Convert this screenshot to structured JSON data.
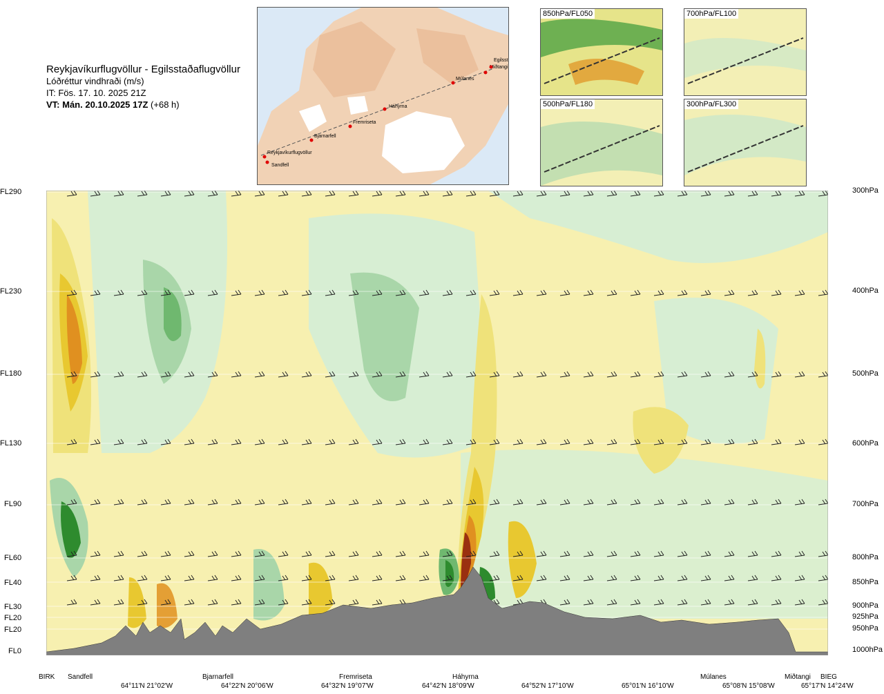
{
  "header": {
    "title": "Reykjavíkurflugvöllur - Egilsstaðaflugvöllur",
    "subtitle": "Lóðréttur vindhraði (m/s)",
    "issue_time": "IT: Fös. 17. 10. 2025 21Z",
    "valid_time_bold": "VT: Mán. 20.10.2025 17Z",
    "valid_time_offset": "(+68 h)"
  },
  "route_map": {
    "points": [
      "Reykjavíkurflugvöllur",
      "Sandfell",
      "Bjarnarfell",
      "Fremriseta",
      "Háhyrna",
      "Múlanes",
      "Miðtangi",
      "Egilsst"
    ]
  },
  "level_panels": [
    {
      "label": "850hPa/FL050"
    },
    {
      "label": "700hPa/FL100"
    },
    {
      "label": "500hPa/FL180"
    },
    {
      "label": "300hPa/FL300"
    }
  ],
  "chart_data": {
    "type": "heatmap",
    "title": "Lóðréttur vindhraði (m/s)",
    "y_left_labels": [
      "FL290",
      "FL230",
      "FL180",
      "FL130",
      "FL90",
      "FL60",
      "FL40",
      "FL30",
      "FL20",
      "FL20",
      "FL0"
    ],
    "y_right_labels": [
      "300hPa",
      "400hPa",
      "500hPa",
      "600hPa",
      "700hPa",
      "800hPa",
      "850hPa",
      "900hPa",
      "925hPa",
      "950hPa",
      "1000hPa"
    ],
    "x_waypoints": [
      "BIRK",
      "Sandfell",
      "Bjarnarfell",
      "Fremriseta",
      "Háhyrna",
      "Múlanes",
      "Miðtangi",
      "BIEG"
    ],
    "x_coordinates": [
      "64°11'N 21°02'W",
      "64°22'N 20°06'W",
      "64°32'N 19°07'W",
      "64°42'N 18°09'W",
      "64°52'N 17°10'W",
      "65°01'N 16°10'W",
      "65°08'N 15°08'W",
      "65°17'N 14°24'W"
    ],
    "colors": {
      "strong_down": "#2e8b2e",
      "down": "#6fb86f",
      "weak_down": "#a9d6a9",
      "very_weak_down": "#d7eed3",
      "neutral": "#fffff0",
      "very_weak_up": "#f7f0b0",
      "weak_up": "#efe27a",
      "up": "#e8c830",
      "strong_up": "#e09020",
      "very_strong_up": "#9a3010",
      "terrain": "#7f7f7f"
    }
  }
}
